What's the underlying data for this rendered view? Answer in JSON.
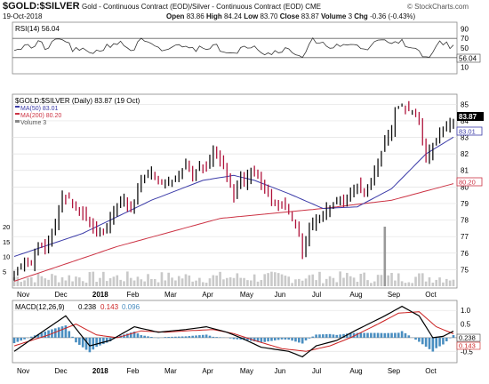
{
  "header": {
    "symbol": "$GOLD:$SILVER",
    "description": "Gold - Continuous Contract (EOD)/Silver - Continuous Contract (EOD) CME",
    "watermark": "© StockCharts.com",
    "date": "19-Oct-2018",
    "ohlc": [
      {
        "label": "Open",
        "value": "83.86"
      },
      {
        "label": "High",
        "value": "84.24"
      },
      {
        "label": "Low",
        "value": "83.70"
      },
      {
        "label": "Close",
        "value": "83.87"
      },
      {
        "label": "Volume",
        "value": "3"
      },
      {
        "label": "Chg",
        "value": "-0.36 (-0.43%)"
      }
    ]
  },
  "rsi": {
    "legend": "RSI(14) 56.04",
    "last_value": "56.04",
    "ticks": [
      90,
      70,
      50,
      30,
      10
    ],
    "ylim": [
      0,
      100
    ],
    "overbought": 70,
    "oversold": 30
  },
  "chart_data": [
    {
      "type": "line",
      "title": "$GOLD:$SILVER (Daily) 83.87 (19 Oct)",
      "x_ticks": [
        "Nov",
        "Dec",
        "2018",
        "Feb",
        "Mar",
        "Apr",
        "May",
        "Jun",
        "Jul",
        "Aug",
        "Sep",
        "Oct"
      ],
      "ylim": [
        74,
        85.5
      ],
      "y_ticks": [
        75,
        76,
        77,
        78,
        79,
        80,
        81,
        82,
        83,
        84,
        85
      ],
      "price_label": "83.87",
      "legend": [
        {
          "name": "MA(50) 83.01",
          "color": "#3b3ba8",
          "tag": "83.01"
        },
        {
          "name": "MA(200) 80.20",
          "color": "#cc3344",
          "tag": "80.20"
        },
        {
          "name": "Volume 3",
          "color": "#888888"
        }
      ],
      "price_keys": [
        [
          0,
          74.6
        ],
        [
          3,
          75.6
        ],
        [
          5,
          75.4
        ],
        [
          7,
          76.6
        ],
        [
          9,
          76.1
        ],
        [
          11,
          77.2
        ],
        [
          13,
          78.6
        ],
        [
          14,
          79.4
        ],
        [
          16,
          79.3
        ],
        [
          18,
          78.8
        ],
        [
          20,
          78.4
        ],
        [
          22,
          77.8
        ],
        [
          24,
          77.3
        ],
        [
          26,
          77.4
        ],
        [
          28,
          78.1
        ],
        [
          30,
          78.9
        ],
        [
          32,
          79.3
        ],
        [
          34,
          78.6
        ],
        [
          36,
          79.9
        ],
        [
          38,
          80.7
        ],
        [
          40,
          80.9
        ],
        [
          43,
          80.2
        ],
        [
          46,
          80.4
        ],
        [
          48,
          80.8
        ],
        [
          50,
          81.4
        ],
        [
          52,
          80.7
        ],
        [
          54,
          81.3
        ],
        [
          56,
          81.1
        ],
        [
          58,
          82.3
        ],
        [
          60,
          81.6
        ],
        [
          62,
          80.6
        ],
        [
          64,
          79.4
        ],
        [
          66,
          80.6
        ],
        [
          67,
          80.1
        ],
        [
          69,
          81.1
        ],
        [
          71,
          80.7
        ],
        [
          73,
          79.7
        ],
        [
          75,
          79.1
        ],
        [
          77,
          78.9
        ],
        [
          79,
          78.7
        ],
        [
          81,
          78.0
        ],
        [
          83,
          77.0
        ],
        [
          84,
          75.9
        ],
        [
          85,
          76.8
        ],
        [
          86,
          77.6
        ],
        [
          88,
          77.9
        ],
        [
          90,
          78.5
        ],
        [
          92,
          78.8
        ],
        [
          94,
          79.1
        ],
        [
          96,
          79.2
        ],
        [
          98,
          79.6
        ],
        [
          100,
          80.1
        ],
        [
          102,
          79.4
        ],
        [
          104,
          80.4
        ],
        [
          106,
          81.4
        ],
        [
          108,
          82.8
        ],
        [
          110,
          83.4
        ],
        [
          111,
          84.8
        ],
        [
          113,
          84.9
        ],
        [
          116,
          84.6
        ],
        [
          118,
          83.9
        ],
        [
          120,
          81.8
        ],
        [
          122,
          82.5
        ],
        [
          124,
          83.3
        ],
        [
          126,
          83.7
        ],
        [
          128,
          83.87
        ]
      ],
      "ma50_keys": [
        [
          0,
          75.8
        ],
        [
          20,
          77.2
        ],
        [
          40,
          79.2
        ],
        [
          55,
          80.4
        ],
        [
          64,
          80.7
        ],
        [
          70,
          80.4
        ],
        [
          80,
          79.6
        ],
        [
          90,
          78.7
        ],
        [
          100,
          78.8
        ],
        [
          110,
          79.9
        ],
        [
          120,
          82.0
        ],
        [
          128,
          83.01
        ]
      ],
      "ma200_keys": [
        [
          0,
          74.3
        ],
        [
          30,
          76.4
        ],
        [
          60,
          78.1
        ],
        [
          90,
          78.7
        ],
        [
          110,
          79.2
        ],
        [
          128,
          80.2
        ]
      ],
      "volume_ticks": [
        5,
        10,
        15,
        20
      ],
      "volume_spike": {
        "index": 108,
        "value": 20
      }
    },
    {
      "type": "line",
      "title": "MACD(12,26,9) 0.238, 0.143, 0.096",
      "legend": [
        {
          "name": "MACD(12,26,9)",
          "value": "0.238",
          "color": "#000000"
        },
        {
          "name": "signal",
          "value": "0.143",
          "color": "#cc2222"
        },
        {
          "name": "histogram",
          "value": "0.096",
          "color": "#4a8ec0"
        }
      ],
      "ylim": [
        -0.85,
        1.3
      ],
      "y_ticks": [
        1.0,
        0.5,
        0.0,
        -0.5
      ],
      "last_tags": [
        "0.238",
        "0.143"
      ],
      "macd_keys": [
        [
          0,
          -0.5
        ],
        [
          8,
          0.2
        ],
        [
          15,
          0.8
        ],
        [
          22,
          -0.3
        ],
        [
          28,
          -0.1
        ],
        [
          35,
          0.4
        ],
        [
          42,
          0.2
        ],
        [
          50,
          0.3
        ],
        [
          56,
          0.4
        ],
        [
          62,
          0.2
        ],
        [
          66,
          0.0
        ],
        [
          72,
          -0.35
        ],
        [
          80,
          -0.5
        ],
        [
          84,
          -0.7
        ],
        [
          88,
          -0.3
        ],
        [
          94,
          -0.1
        ],
        [
          100,
          0.3
        ],
        [
          108,
          0.8
        ],
        [
          113,
          1.15
        ],
        [
          118,
          0.8
        ],
        [
          122,
          0.0
        ],
        [
          125,
          0.05
        ],
        [
          128,
          0.238
        ]
      ],
      "signal_keys": [
        [
          0,
          -0.3
        ],
        [
          10,
          0.1
        ],
        [
          18,
          0.5
        ],
        [
          24,
          0.1
        ],
        [
          30,
          0.0
        ],
        [
          37,
          0.25
        ],
        [
          44,
          0.2
        ],
        [
          50,
          0.25
        ],
        [
          58,
          0.3
        ],
        [
          64,
          0.15
        ],
        [
          70,
          -0.1
        ],
        [
          78,
          -0.4
        ],
        [
          85,
          -0.5
        ],
        [
          92,
          -0.3
        ],
        [
          98,
          0.0
        ],
        [
          106,
          0.5
        ],
        [
          112,
          0.9
        ],
        [
          118,
          0.95
        ],
        [
          123,
          0.4
        ],
        [
          128,
          0.143
        ]
      ]
    }
  ]
}
